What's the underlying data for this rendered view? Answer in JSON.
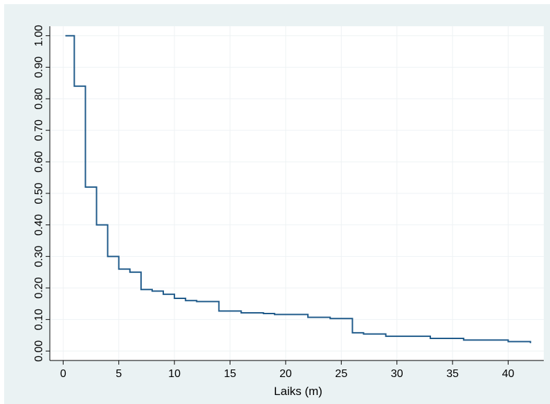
{
  "chart_data": {
    "type": "line",
    "step": true,
    "title": "",
    "xlabel": "Laiks (m)",
    "ylabel": "",
    "xlim": [
      -1.2,
      43.2
    ],
    "ylim": [
      -0.03,
      1.03
    ],
    "x_ticks": [
      0,
      5,
      10,
      15,
      20,
      25,
      30,
      35,
      40
    ],
    "x_tick_labels": [
      "0",
      "5",
      "10",
      "15",
      "20",
      "25",
      "30",
      "35",
      "40"
    ],
    "y_ticks": [
      0,
      0.1,
      0.2,
      0.3,
      0.4,
      0.5,
      0.6,
      0.7,
      0.8,
      0.9,
      1.0
    ],
    "y_tick_labels": [
      "0.00",
      "0.10",
      "0.20",
      "0.30",
      "0.40",
      "0.50",
      "0.60",
      "0.70",
      "0.80",
      "0.90",
      "1.00"
    ],
    "grid": true,
    "legend": "none",
    "colors": {
      "line": "#1f5a8a",
      "plot_bg": "#ffffff",
      "figure_bg": "#eaf2f3",
      "grid": "#eef2f4"
    },
    "series": [
      {
        "x": [
          0.2,
          1,
          2,
          3,
          4,
          5,
          6,
          7,
          8,
          9,
          10,
          11,
          12,
          14,
          16,
          18,
          19,
          22,
          24,
          26,
          27,
          29,
          33,
          36,
          40,
          42
        ],
        "y": [
          1.0,
          0.84,
          0.52,
          0.4,
          0.3,
          0.26,
          0.25,
          0.195,
          0.19,
          0.18,
          0.167,
          0.16,
          0.157,
          0.127,
          0.121,
          0.119,
          0.116,
          0.107,
          0.103,
          0.058,
          0.054,
          0.047,
          0.04,
          0.035,
          0.03,
          0.025
        ]
      }
    ]
  }
}
